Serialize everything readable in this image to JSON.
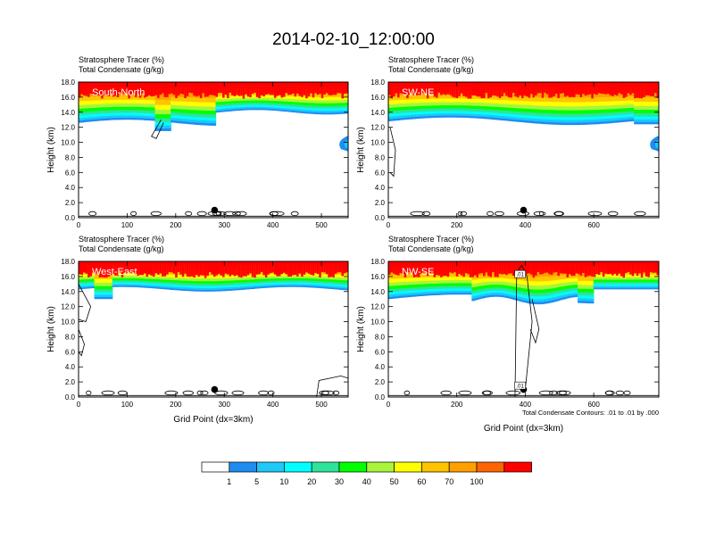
{
  "title": "2014-02-10_12:00:00",
  "chart_data": [
    {
      "type": "heatmap",
      "panel": "South-North",
      "title_lines": [
        "Stratosphere Tracer   (%)",
        "Total Condensate   (g/kg)"
      ],
      "xlabel": "",
      "ylabel": "Height (km)",
      "xlim": [
        0,
        555
      ],
      "ylim": [
        0,
        18
      ],
      "xticks": [
        "0",
        "100",
        "200",
        "300",
        "400",
        "500"
      ],
      "xtick_values": [
        0,
        100,
        200,
        300,
        400,
        500
      ],
      "yticks": [
        "0.0",
        "2.0",
        "4.0",
        "6.0",
        "8.0",
        "10.0",
        "12.0",
        "14.0",
        "16.0",
        "18.0"
      ],
      "marker_x": 280,
      "marker_y": 1.0
    },
    {
      "type": "heatmap",
      "panel": "SW-NE",
      "title_lines": [
        "Stratosphere Tracer   (%)",
        "Total Condensate   (g/kg)"
      ],
      "xlabel": "",
      "ylabel": "Height (km)",
      "xlim": [
        0,
        790
      ],
      "ylim": [
        0,
        18
      ],
      "xticks": [
        "0",
        "200",
        "400",
        "600"
      ],
      "xtick_values": [
        0,
        200,
        400,
        600
      ],
      "yticks": [
        "0.0",
        "2.0",
        "4.0",
        "6.0",
        "8.0",
        "10.0",
        "12.0",
        "14.0",
        "16.0",
        "18.0"
      ],
      "marker_x": 395,
      "marker_y": 1.0
    },
    {
      "type": "heatmap",
      "panel": "West-East",
      "title_lines": [
        "Stratosphere Tracer   (%)",
        "Total Condensate   (g/kg)"
      ],
      "xlabel": "Grid Point (dx=3km)",
      "ylabel": "Height (km)",
      "xlim": [
        0,
        555
      ],
      "ylim": [
        0,
        18
      ],
      "xticks": [
        "0",
        "100",
        "200",
        "300",
        "400",
        "500"
      ],
      "xtick_values": [
        0,
        100,
        200,
        300,
        400,
        500
      ],
      "yticks": [
        "0.0",
        "2.0",
        "4.0",
        "6.0",
        "8.0",
        "10.0",
        "12.0",
        "14.0",
        "16.0",
        "18.0"
      ],
      "marker_x": 280,
      "marker_y": 1.0
    },
    {
      "type": "heatmap",
      "panel": "NW-SE",
      "title_lines": [
        "Stratosphere Tracer   (%)",
        "Total Condensate   (g/kg)"
      ],
      "xlabel": "Grid Point (dx=3km)",
      "ylabel": "Height (km)",
      "xlim": [
        0,
        790
      ],
      "ylim": [
        0,
        18
      ],
      "xticks": [
        "0",
        "200",
        "400",
        "600"
      ],
      "xtick_values": [
        0,
        200,
        400,
        600
      ],
      "yticks": [
        "0.0",
        "2.0",
        "4.0",
        "6.0",
        "8.0",
        "10.0",
        "12.0",
        "14.0",
        "16.0",
        "18.0"
      ],
      "marker_x": 395,
      "marker_y": 1.0,
      "contour_note": "Total Condensate Contours: .01 to .01 by .000",
      "contour_labels": [
        ".01",
        ".01"
      ]
    }
  ],
  "colorbar": {
    "levels": [
      "1",
      "5",
      "10",
      "20",
      "30",
      "40",
      "50",
      "60",
      "70",
      "100"
    ],
    "colors": [
      "#ffffff",
      "#1e8cf0",
      "#1ec8f8",
      "#00ffff",
      "#2ee39a",
      "#00ff00",
      "#a8f53c",
      "#ffff00",
      "#ffc400",
      "#ffa000",
      "#ff6400",
      "#ff0000"
    ]
  }
}
